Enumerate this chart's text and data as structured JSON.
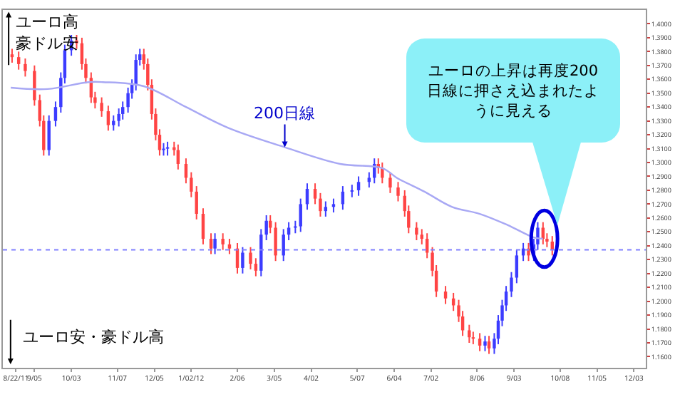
{
  "chart_data": {
    "type": "candlestick",
    "xlim": [
      "2011-08-12",
      "2012-12-12"
    ],
    "xticks": [
      {
        "value": "2011-08-22",
        "label": "8/22/11"
      },
      {
        "value": "2011-09-05",
        "label": "9/05"
      },
      {
        "value": "2011-10-03",
        "label": "10/03"
      },
      {
        "value": "2011-11-07",
        "label": "11/07"
      },
      {
        "value": "2011-12-05",
        "label": "12/05"
      },
      {
        "value": "2012-01-02",
        "label": "1/02/12"
      },
      {
        "value": "2012-02-06",
        "label": "2/06"
      },
      {
        "value": "2012-03-05",
        "label": "3/05"
      },
      {
        "value": "2012-04-02",
        "label": "4/02"
      },
      {
        "value": "2012-05-07",
        "label": "5/07"
      },
      {
        "value": "2012-06-04",
        "label": "6/04"
      },
      {
        "value": "2012-07-02",
        "label": "7/02"
      },
      {
        "value": "2012-08-06",
        "label": "8/06"
      },
      {
        "value": "2012-09-03",
        "label": "9/03"
      },
      {
        "value": "2012-10-08",
        "label": "10/08"
      },
      {
        "value": "2012-11-05",
        "label": "11/05"
      },
      {
        "value": "2012-12-03",
        "label": "12/03"
      }
    ],
    "ylim": [
      1.152,
      1.41
    ],
    "yticks": [
      {
        "value": 1.16,
        "label": "1.1600"
      },
      {
        "value": 1.17,
        "label": "1.1700"
      },
      {
        "value": 1.18,
        "label": "1.1800"
      },
      {
        "value": 1.19,
        "label": "1.1900"
      },
      {
        "value": 1.2,
        "label": "1.2000"
      },
      {
        "value": 1.21,
        "label": "1.2100"
      },
      {
        "value": 1.22,
        "label": "1.2200"
      },
      {
        "value": 1.23,
        "label": "1.2300"
      },
      {
        "value": 1.24,
        "label": "1.2400"
      },
      {
        "value": 1.25,
        "label": "1.2500"
      },
      {
        "value": 1.26,
        "label": "1.2600"
      },
      {
        "value": 1.27,
        "label": "1.2700"
      },
      {
        "value": 1.28,
        "label": "1.2800"
      },
      {
        "value": 1.29,
        "label": "1.2900"
      },
      {
        "value": 1.3,
        "label": "1.3000"
      },
      {
        "value": 1.31,
        "label": "1.3100"
      },
      {
        "value": 1.32,
        "label": "1.3200"
      },
      {
        "value": 1.33,
        "label": "1.3300"
      },
      {
        "value": 1.34,
        "label": "1.3400"
      },
      {
        "value": 1.35,
        "label": "1.3500"
      },
      {
        "value": 1.36,
        "label": "1.3600"
      },
      {
        "value": 1.37,
        "label": "1.3700"
      },
      {
        "value": 1.38,
        "label": "1.3800"
      },
      {
        "value": 1.39,
        "label": "1.3900"
      },
      {
        "value": 1.4,
        "label": "1.4000"
      }
    ],
    "grid": false,
    "colors": [
      "#ff4444",
      "#ff4444",
      "#ff4444",
      "#ff4444",
      "#ff4444",
      "#ff4444",
      "#3c3cff",
      "#3c3cff",
      "#3c3cff",
      "#3c3cff",
      "#3c3cff",
      "#ff4444",
      "#ff4444",
      "#ff4444",
      "#ff4444",
      "#ff4444",
      "#ff4444",
      "#ff4444",
      "#3c3cff",
      "#3c3cff",
      "#3c3cff",
      "#3c3cff",
      "#3c3cff",
      "#3c3cff",
      "#3c3cff",
      "#ff4444",
      "#ff4444",
      "#ff4444",
      "#ff4444",
      "#ff4444",
      "#3c3cff",
      "#3c3cff",
      "#ff4444",
      "#ff4444",
      "#ff4444",
      "#ff4444",
      "#ff4444",
      "#ff4444",
      "#ff4444",
      "#3c3cff",
      "#ff4444",
      "#ff4444",
      "#ff4444",
      "#3c3cff",
      "#ff4444",
      "#ff4444",
      "#3c3cff",
      "#3c3cff",
      "#ff4444",
      "#ff4444",
      "#3c3cff",
      "#3c3cff",
      "#3c3cff",
      "#3c3cff",
      "#3c3cff",
      "#ff4444",
      "#ff4444",
      "#3c3cff",
      "#3c3cff",
      "#3c3cff",
      "#3c3cff",
      "#3c3cff",
      "#3c3cff",
      "#3c3cff",
      "#ff4444",
      "#ff4444",
      "#ff4444",
      "#ff4444",
      "#ff4444",
      "#ff4444",
      "#ff4444",
      "#ff4444",
      "#ff4444",
      "#ff4444",
      "#ff4444",
      "#ff4444",
      "#ff4444",
      "#ff4444",
      "#ff4444",
      "#ff4444",
      "#ff4444",
      "#ff4444",
      "#3c3cff",
      "#ff4444",
      "#3c3cff",
      "#3c3cff",
      "#3c3cff",
      "#3c3cff",
      "#3c3cff",
      "#3c3cff",
      "#3c3cff",
      "#ff4444",
      "#3c3cff",
      "#3c3cff",
      "#ff4444",
      "#ff4444",
      "#ff4444"
    ],
    "x": [
      "2011-08-19",
      "2011-08-24",
      "2011-08-29",
      "2011-09-05",
      "2011-09-09",
      "2011-09-12",
      "2011-09-16",
      "2011-09-21",
      "2011-09-25",
      "2011-09-28",
      "2011-10-03",
      "2011-10-07",
      "2011-10-11",
      "2011-10-14",
      "2011-10-18",
      "2011-10-21",
      "2011-10-26",
      "2011-10-31",
      "2011-11-04",
      "2011-11-08",
      "2011-11-11",
      "2011-11-15",
      "2011-11-18",
      "2011-11-21",
      "2011-11-24",
      "2011-11-27",
      "2011-11-30",
      "2011-12-03",
      "2011-12-06",
      "2011-12-09",
      "2011-12-12",
      "2011-12-15",
      "2011-12-20",
      "2011-12-23",
      "2011-12-29",
      "2012-01-02",
      "2012-01-06",
      "2012-01-11",
      "2012-01-17",
      "2012-01-20",
      "2012-01-26",
      "2012-01-31",
      "2012-02-06",
      "2012-02-10",
      "2012-02-16",
      "2012-02-20",
      "2012-02-24",
      "2012-02-28",
      "2012-03-02",
      "2012-03-06",
      "2012-03-12",
      "2012-03-16",
      "2012-03-21",
      "2012-03-25",
      "2012-03-30",
      "2012-04-05",
      "2012-04-09",
      "2012-04-13",
      "2012-04-19",
      "2012-04-26",
      "2012-05-03",
      "2012-05-08",
      "2012-05-16",
      "2012-05-20",
      "2012-05-23",
      "2012-05-26",
      "2012-06-01",
      "2012-06-07",
      "2012-06-12",
      "2012-06-15",
      "2012-06-21",
      "2012-06-25",
      "2012-06-29",
      "2012-07-03",
      "2012-07-06",
      "2012-07-13",
      "2012-07-19",
      "2012-07-23",
      "2012-07-26",
      "2012-07-31",
      "2012-08-03",
      "2012-08-08",
      "2012-08-12",
      "2012-08-15",
      "2012-08-19",
      "2012-08-22",
      "2012-08-25",
      "2012-08-28",
      "2012-09-01",
      "2012-09-05",
      "2012-09-10",
      "2012-09-14",
      "2012-09-18",
      "2012-09-21",
      "2012-09-25",
      "2012-09-28",
      "2012-10-02"
    ],
    "ohlc": [
      [
        1.378,
        1.382,
        1.372,
        1.376
      ],
      [
        1.376,
        1.38,
        1.367,
        1.371
      ],
      [
        1.371,
        1.375,
        1.362,
        1.366
      ],
      [
        1.366,
        1.37,
        1.341,
        1.345
      ],
      [
        1.345,
        1.349,
        1.326,
        1.33
      ],
      [
        1.33,
        1.334,
        1.305,
        1.309
      ],
      [
        1.309,
        1.334,
        1.305,
        1.33
      ],
      [
        1.33,
        1.344,
        1.326,
        1.34
      ],
      [
        1.34,
        1.365,
        1.336,
        1.361
      ],
      [
        1.361,
        1.385,
        1.357,
        1.381
      ],
      [
        1.381,
        1.392,
        1.377,
        1.388
      ],
      [
        1.388,
        1.392,
        1.382,
        1.386
      ],
      [
        1.386,
        1.39,
        1.367,
        1.371
      ],
      [
        1.371,
        1.375,
        1.357,
        1.361
      ],
      [
        1.361,
        1.365,
        1.343,
        1.347
      ],
      [
        1.347,
        1.351,
        1.339,
        1.343
      ],
      [
        1.343,
        1.347,
        1.333,
        1.337
      ],
      [
        1.337,
        1.341,
        1.323,
        1.327
      ],
      [
        1.327,
        1.334,
        1.323,
        1.33
      ],
      [
        1.33,
        1.339,
        1.326,
        1.335
      ],
      [
        1.335,
        1.344,
        1.331,
        1.34
      ],
      [
        1.34,
        1.354,
        1.336,
        1.35
      ],
      [
        1.35,
        1.36,
        1.346,
        1.356
      ],
      [
        1.356,
        1.378,
        1.352,
        1.374
      ],
      [
        1.374,
        1.382,
        1.37,
        1.378
      ],
      [
        1.378,
        1.382,
        1.367,
        1.371
      ],
      [
        1.371,
        1.375,
        1.352,
        1.356
      ],
      [
        1.356,
        1.36,
        1.331,
        1.335
      ],
      [
        1.335,
        1.339,
        1.316,
        1.32
      ],
      [
        1.32,
        1.324,
        1.305,
        1.309
      ],
      [
        1.309,
        1.314,
        1.305,
        1.31
      ],
      [
        1.31,
        1.315,
        1.305,
        1.311
      ],
      [
        1.311,
        1.315,
        1.305,
        1.309
      ],
      [
        1.309,
        1.313,
        1.295,
        1.299
      ],
      [
        1.299,
        1.303,
        1.285,
        1.289
      ],
      [
        1.289,
        1.293,
        1.275,
        1.279
      ],
      [
        1.279,
        1.283,
        1.259,
        1.263
      ],
      [
        1.263,
        1.267,
        1.241,
        1.245
      ],
      [
        1.245,
        1.249,
        1.234,
        1.238
      ],
      [
        1.238,
        1.249,
        1.234,
        1.245
      ],
      [
        1.245,
        1.249,
        1.237,
        1.241
      ],
      [
        1.241,
        1.245,
        1.234,
        1.238
      ],
      [
        1.238,
        1.242,
        1.22,
        1.224
      ],
      [
        1.224,
        1.239,
        1.22,
        1.235
      ],
      [
        1.235,
        1.239,
        1.223,
        1.227
      ],
      [
        1.227,
        1.231,
        1.218,
        1.222
      ],
      [
        1.222,
        1.252,
        1.218,
        1.248
      ],
      [
        1.248,
        1.262,
        1.244,
        1.258
      ],
      [
        1.258,
        1.262,
        1.249,
        1.253
      ],
      [
        1.253,
        1.257,
        1.229,
        1.233
      ],
      [
        1.233,
        1.252,
        1.229,
        1.248
      ],
      [
        1.248,
        1.257,
        1.244,
        1.253
      ],
      [
        1.253,
        1.258,
        1.249,
        1.254
      ],
      [
        1.254,
        1.274,
        1.25,
        1.27
      ],
      [
        1.27,
        1.285,
        1.266,
        1.281
      ],
      [
        1.281,
        1.285,
        1.27,
        1.274
      ],
      [
        1.274,
        1.278,
        1.261,
        1.265
      ],
      [
        1.265,
        1.272,
        1.261,
        1.268
      ],
      [
        1.268,
        1.274,
        1.264,
        1.27
      ],
      [
        1.27,
        1.283,
        1.266,
        1.279
      ],
      [
        1.279,
        1.284,
        1.275,
        1.28
      ],
      [
        1.28,
        1.29,
        1.276,
        1.286
      ],
      [
        1.286,
        1.293,
        1.282,
        1.289
      ],
      [
        1.289,
        1.303,
        1.285,
        1.299
      ],
      [
        1.299,
        1.303,
        1.292,
        1.296
      ],
      [
        1.296,
        1.3,
        1.285,
        1.289
      ],
      [
        1.289,
        1.293,
        1.278,
        1.282
      ],
      [
        1.282,
        1.286,
        1.272,
        1.276
      ],
      [
        1.276,
        1.28,
        1.261,
        1.265
      ],
      [
        1.265,
        1.269,
        1.249,
        1.253
      ],
      [
        1.253,
        1.257,
        1.244,
        1.248
      ],
      [
        1.248,
        1.252,
        1.241,
        1.245
      ],
      [
        1.245,
        1.249,
        1.231,
        1.235
      ],
      [
        1.235,
        1.239,
        1.218,
        1.222
      ],
      [
        1.222,
        1.226,
        1.203,
        1.207
      ],
      [
        1.207,
        1.211,
        1.198,
        1.202
      ],
      [
        1.202,
        1.206,
        1.193,
        1.197
      ],
      [
        1.197,
        1.201,
        1.185,
        1.189
      ],
      [
        1.189,
        1.193,
        1.175,
        1.179
      ],
      [
        1.179,
        1.183,
        1.17,
        1.174
      ],
      [
        1.174,
        1.178,
        1.169,
        1.173
      ],
      [
        1.173,
        1.177,
        1.164,
        1.168
      ],
      [
        1.168,
        1.175,
        1.164,
        1.171
      ],
      [
        1.171,
        1.175,
        1.162,
        1.166
      ],
      [
        1.166,
        1.177,
        1.162,
        1.173
      ],
      [
        1.173,
        1.19,
        1.169,
        1.186
      ],
      [
        1.186,
        1.201,
        1.182,
        1.197
      ],
      [
        1.197,
        1.211,
        1.193,
        1.207
      ],
      [
        1.207,
        1.221,
        1.203,
        1.217
      ],
      [
        1.217,
        1.237,
        1.213,
        1.233
      ],
      [
        1.233,
        1.242,
        1.229,
        1.238
      ],
      [
        1.238,
        1.242,
        1.229,
        1.233
      ],
      [
        1.233,
        1.245,
        1.229,
        1.241
      ],
      [
        1.241,
        1.257,
        1.237,
        1.253
      ],
      [
        1.253,
        1.257,
        1.241,
        1.245
      ],
      [
        1.245,
        1.249,
        1.239,
        1.243
      ],
      [
        1.243,
        1.247,
        1.233,
        1.237
      ]
    ],
    "series": [
      {
        "type": "line",
        "color": "#a8a8f4",
        "x": [
          "2011-08-18",
          "2011-09-15",
          "2011-10-16",
          "2011-10-27",
          "2011-11-27",
          "2011-12-29",
          "2012-01-30",
          "2012-03-13",
          "2012-04-24",
          "2012-05-26",
          "2012-06-06",
          "2012-06-27",
          "2012-07-18",
          "2012-08-08",
          "2012-08-29",
          "2012-09-18",
          "2012-09-25"
        ],
        "values": [
          1.354,
          1.353,
          1.358,
          1.358,
          1.355,
          1.34,
          1.325,
          1.311,
          1.299,
          1.296,
          1.289,
          1.279,
          1.268,
          1.263,
          1.255,
          1.246,
          1.245
        ]
      }
    ],
    "ref_lines": [
      {
        "axis": "y",
        "value": 1.237,
        "color": "#8080ff",
        "line_style": "dotted"
      }
    ],
    "annotations": [
      "ユーロ高豪ドル安",
      "ユーロ安・豪ドル高",
      {
        "text": "200日線",
        "x": "2012-03-13",
        "y": 1.311
      },
      "ユーロの上昇は再度200日線に押さえ込まれたように見える"
    ]
  }
}
